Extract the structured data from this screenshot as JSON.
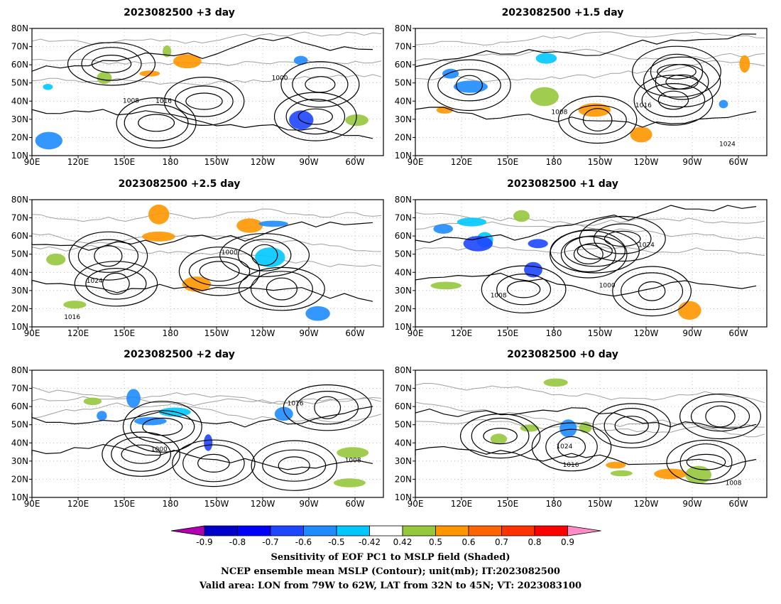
{
  "panels": [
    {
      "title": "2023082500 +3 day"
    },
    {
      "title": "2023082500 +1.5 day"
    },
    {
      "title": "2023082500 +2.5 day"
    },
    {
      "title": "2023082500 +1 day"
    },
    {
      "title": "2023082500 +2 day"
    },
    {
      "title": "2023082500 +0 day"
    }
  ],
  "axes": {
    "lat_ticks": [
      "80N",
      "70N",
      "60N",
      "50N",
      "40N",
      "30N",
      "20N",
      "10N"
    ],
    "lon_ticks": [
      "90E",
      "120E",
      "150E",
      "180",
      "150W",
      "120W",
      "90W",
      "60W"
    ]
  },
  "contour_labels": [
    "1000",
    "1008",
    "1016",
    "1024"
  ],
  "colorbar": {
    "ticks": [
      "-0.9",
      "-0.8",
      "-0.7",
      "-0.6",
      "-0.5",
      "-0.42",
      "0.42",
      "0.5",
      "0.6",
      "0.7",
      "0.8",
      "0.9"
    ],
    "colors": [
      "#b000b0",
      "#0000c8",
      "#0000ff",
      "#1e46ff",
      "#1e8cff",
      "#00c8ff",
      "#ffffff",
      "#96c83c",
      "#ff9600",
      "#ff6400",
      "#ff3200",
      "#ff0000",
      "#ff8cc8"
    ]
  },
  "caption": {
    "line1": "Sensitivity of EOF PC1 to MSLP field (Shaded)",
    "line2": "NCEP ensemble mean MSLP (Contour); unit(mb); IT:2023082500",
    "line3": "Valid area: LON from 79W to 62W, LAT from 32N to 45N; VT: 2023083100"
  }
}
